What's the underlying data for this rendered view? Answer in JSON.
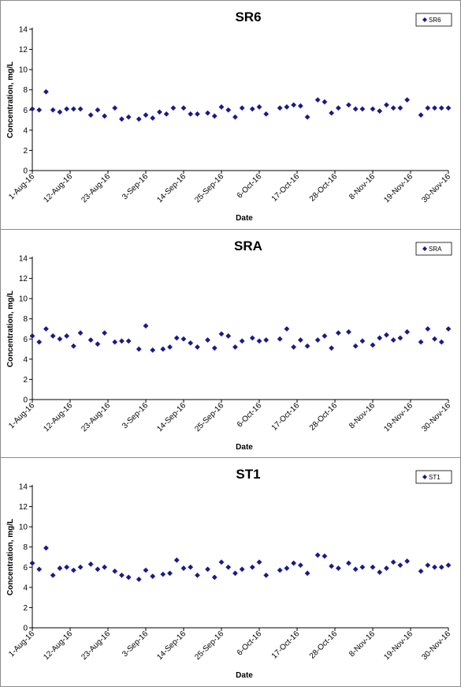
{
  "colors": {
    "marker": "#1a1a8c",
    "axis": "#000000",
    "panel_border": "#8c8c8c"
  },
  "chart_data": [
    {
      "type": "scatter",
      "title": "SR6",
      "xlabel": "Date",
      "ylabel": "Concentration, mg/L",
      "legend": [
        "SR6"
      ],
      "legend_position": "top-right",
      "grid": false,
      "ylim": [
        0,
        14
      ],
      "yticks": [
        0,
        2,
        4,
        6,
        8,
        10,
        12,
        14
      ],
      "xlim": [
        "2016-08-01",
        "2016-11-30"
      ],
      "xticks": [
        "1-Aug-16",
        "12-Aug-16",
        "23-Aug-16",
        "3-Sep-16",
        "14-Sep-16",
        "25-Sep-16",
        "6-Oct-16",
        "17-Oct-16",
        "28-Oct-16",
        "8-Nov-16",
        "19-Nov-16",
        "30-Nov-16"
      ],
      "series": [
        {
          "name": "SR6",
          "x": [
            "2016-08-01",
            "2016-08-03",
            "2016-08-05",
            "2016-08-07",
            "2016-08-09",
            "2016-08-11",
            "2016-08-13",
            "2016-08-15",
            "2016-08-18",
            "2016-08-20",
            "2016-08-22",
            "2016-08-25",
            "2016-08-27",
            "2016-08-29",
            "2016-09-01",
            "2016-09-03",
            "2016-09-05",
            "2016-09-07",
            "2016-09-09",
            "2016-09-11",
            "2016-09-14",
            "2016-09-16",
            "2016-09-18",
            "2016-09-21",
            "2016-09-23",
            "2016-09-25",
            "2016-09-27",
            "2016-09-29",
            "2016-10-01",
            "2016-10-04",
            "2016-10-06",
            "2016-10-08",
            "2016-10-12",
            "2016-10-14",
            "2016-10-16",
            "2016-10-18",
            "2016-10-20",
            "2016-10-23",
            "2016-10-25",
            "2016-10-27",
            "2016-10-29",
            "2016-11-01",
            "2016-11-03",
            "2016-11-05",
            "2016-11-08",
            "2016-11-10",
            "2016-11-12",
            "2016-11-14",
            "2016-11-16",
            "2016-11-18",
            "2016-11-22",
            "2016-11-24",
            "2016-11-26",
            "2016-11-28",
            "2016-11-30"
          ],
          "y": [
            6.1,
            6.0,
            7.8,
            6.0,
            5.8,
            6.1,
            6.1,
            6.1,
            5.5,
            6.0,
            5.4,
            6.2,
            5.1,
            5.3,
            5.1,
            5.5,
            5.2,
            5.8,
            5.6,
            6.2,
            6.2,
            5.6,
            5.6,
            5.7,
            5.4,
            6.3,
            6.0,
            5.3,
            6.2,
            6.1,
            6.3,
            5.6,
            6.2,
            6.3,
            6.5,
            6.4,
            5.3,
            7.0,
            6.8,
            5.7,
            6.2,
            6.5,
            6.1,
            6.1,
            6.1,
            5.9,
            6.5,
            6.2,
            6.2,
            7.0,
            5.5,
            6.2,
            6.2,
            6.2,
            6.2
          ]
        }
      ]
    },
    {
      "type": "scatter",
      "title": "SRA",
      "xlabel": "Date",
      "ylabel": "Concentration, mg/L",
      "legend": [
        "SRA"
      ],
      "legend_position": "top-right",
      "grid": false,
      "ylim": [
        0,
        14
      ],
      "yticks": [
        0,
        2,
        4,
        6,
        8,
        10,
        12,
        14
      ],
      "xlim": [
        "2016-08-01",
        "2016-11-30"
      ],
      "xticks": [
        "1-Aug-16",
        "12-Aug-16",
        "23-Aug-16",
        "3-Sep-16",
        "14-Sep-16",
        "25-Sep-16",
        "6-Oct-16",
        "17-Oct-16",
        "28-Oct-16",
        "8-Nov-16",
        "19-Nov-16",
        "30-Nov-16"
      ],
      "series": [
        {
          "name": "SRA",
          "x": [
            "2016-08-01",
            "2016-08-03",
            "2016-08-05",
            "2016-08-07",
            "2016-08-09",
            "2016-08-11",
            "2016-08-13",
            "2016-08-15",
            "2016-08-18",
            "2016-08-20",
            "2016-08-22",
            "2016-08-25",
            "2016-08-27",
            "2016-08-29",
            "2016-09-01",
            "2016-09-03",
            "2016-09-05",
            "2016-09-08",
            "2016-09-10",
            "2016-09-12",
            "2016-09-14",
            "2016-09-16",
            "2016-09-18",
            "2016-09-21",
            "2016-09-23",
            "2016-09-25",
            "2016-09-27",
            "2016-09-29",
            "2016-10-01",
            "2016-10-04",
            "2016-10-06",
            "2016-10-08",
            "2016-10-12",
            "2016-10-14",
            "2016-10-16",
            "2016-10-18",
            "2016-10-20",
            "2016-10-23",
            "2016-10-25",
            "2016-10-27",
            "2016-10-29",
            "2016-11-01",
            "2016-11-03",
            "2016-11-05",
            "2016-11-08",
            "2016-11-10",
            "2016-11-12",
            "2016-11-14",
            "2016-11-16",
            "2016-11-18",
            "2016-11-22",
            "2016-11-24",
            "2016-11-26",
            "2016-11-28",
            "2016-11-30"
          ],
          "y": [
            6.3,
            5.7,
            7.0,
            6.3,
            6.0,
            6.3,
            5.3,
            6.6,
            5.9,
            5.5,
            6.6,
            5.7,
            5.8,
            5.8,
            5.0,
            7.3,
            4.9,
            5.0,
            5.2,
            6.1,
            6.0,
            5.6,
            5.2,
            5.9,
            5.1,
            6.5,
            6.3,
            5.2,
            5.8,
            6.1,
            5.8,
            5.9,
            6.0,
            7.0,
            5.2,
            5.9,
            5.3,
            5.9,
            6.3,
            5.1,
            6.6,
            6.7,
            5.3,
            5.8,
            5.4,
            6.1,
            6.4,
            5.9,
            6.1,
            6.7,
            5.7,
            7.0,
            6.0,
            5.7,
            7.0
          ]
        }
      ]
    },
    {
      "type": "scatter",
      "title": "ST1",
      "xlabel": "Date",
      "ylabel": "Concentration, mg/L",
      "legend": [
        "ST1"
      ],
      "legend_position": "top-right",
      "grid": false,
      "ylim": [
        0,
        14
      ],
      "yticks": [
        0,
        2,
        4,
        6,
        8,
        10,
        12,
        14
      ],
      "xlim": [
        "2016-08-01",
        "2016-11-30"
      ],
      "xticks": [
        "1-Aug-16",
        "12-Aug-16",
        "23-Aug-16",
        "3-Sep-16",
        "14-Sep-16",
        "25-Sep-16",
        "6-Oct-16",
        "17-Oct-16",
        "28-Oct-16",
        "8-Nov-16",
        "19-Nov-16",
        "30-Nov-16"
      ],
      "series": [
        {
          "name": "ST1",
          "x": [
            "2016-08-01",
            "2016-08-03",
            "2016-08-05",
            "2016-08-07",
            "2016-08-09",
            "2016-08-11",
            "2016-08-13",
            "2016-08-15",
            "2016-08-18",
            "2016-08-20",
            "2016-08-22",
            "2016-08-25",
            "2016-08-27",
            "2016-08-29",
            "2016-09-01",
            "2016-09-03",
            "2016-09-05",
            "2016-09-08",
            "2016-09-10",
            "2016-09-12",
            "2016-09-14",
            "2016-09-16",
            "2016-09-18",
            "2016-09-21",
            "2016-09-23",
            "2016-09-25",
            "2016-09-27",
            "2016-09-29",
            "2016-10-01",
            "2016-10-04",
            "2016-10-06",
            "2016-10-08",
            "2016-10-12",
            "2016-10-14",
            "2016-10-16",
            "2016-10-18",
            "2016-10-20",
            "2016-10-23",
            "2016-10-25",
            "2016-10-27",
            "2016-10-29",
            "2016-11-01",
            "2016-11-03",
            "2016-11-05",
            "2016-11-08",
            "2016-11-10",
            "2016-11-12",
            "2016-11-14",
            "2016-11-16",
            "2016-11-18",
            "2016-11-22",
            "2016-11-24",
            "2016-11-26",
            "2016-11-28",
            "2016-11-30"
          ],
          "y": [
            6.4,
            5.8,
            7.9,
            5.2,
            5.9,
            6.0,
            5.7,
            6.0,
            6.3,
            5.8,
            6.0,
            5.6,
            5.2,
            5.0,
            4.8,
            5.7,
            5.1,
            5.3,
            5.4,
            6.7,
            5.9,
            6.0,
            5.2,
            5.8,
            5.0,
            6.5,
            6.0,
            5.4,
            5.8,
            6.0,
            6.5,
            5.2,
            5.7,
            5.9,
            6.4,
            6.2,
            5.4,
            7.2,
            7.1,
            6.1,
            5.9,
            6.4,
            5.8,
            6.0,
            6.0,
            5.5,
            5.9,
            6.5,
            6.2,
            6.6,
            5.6,
            6.2,
            6.0,
            6.0,
            6.2
          ]
        }
      ]
    }
  ]
}
